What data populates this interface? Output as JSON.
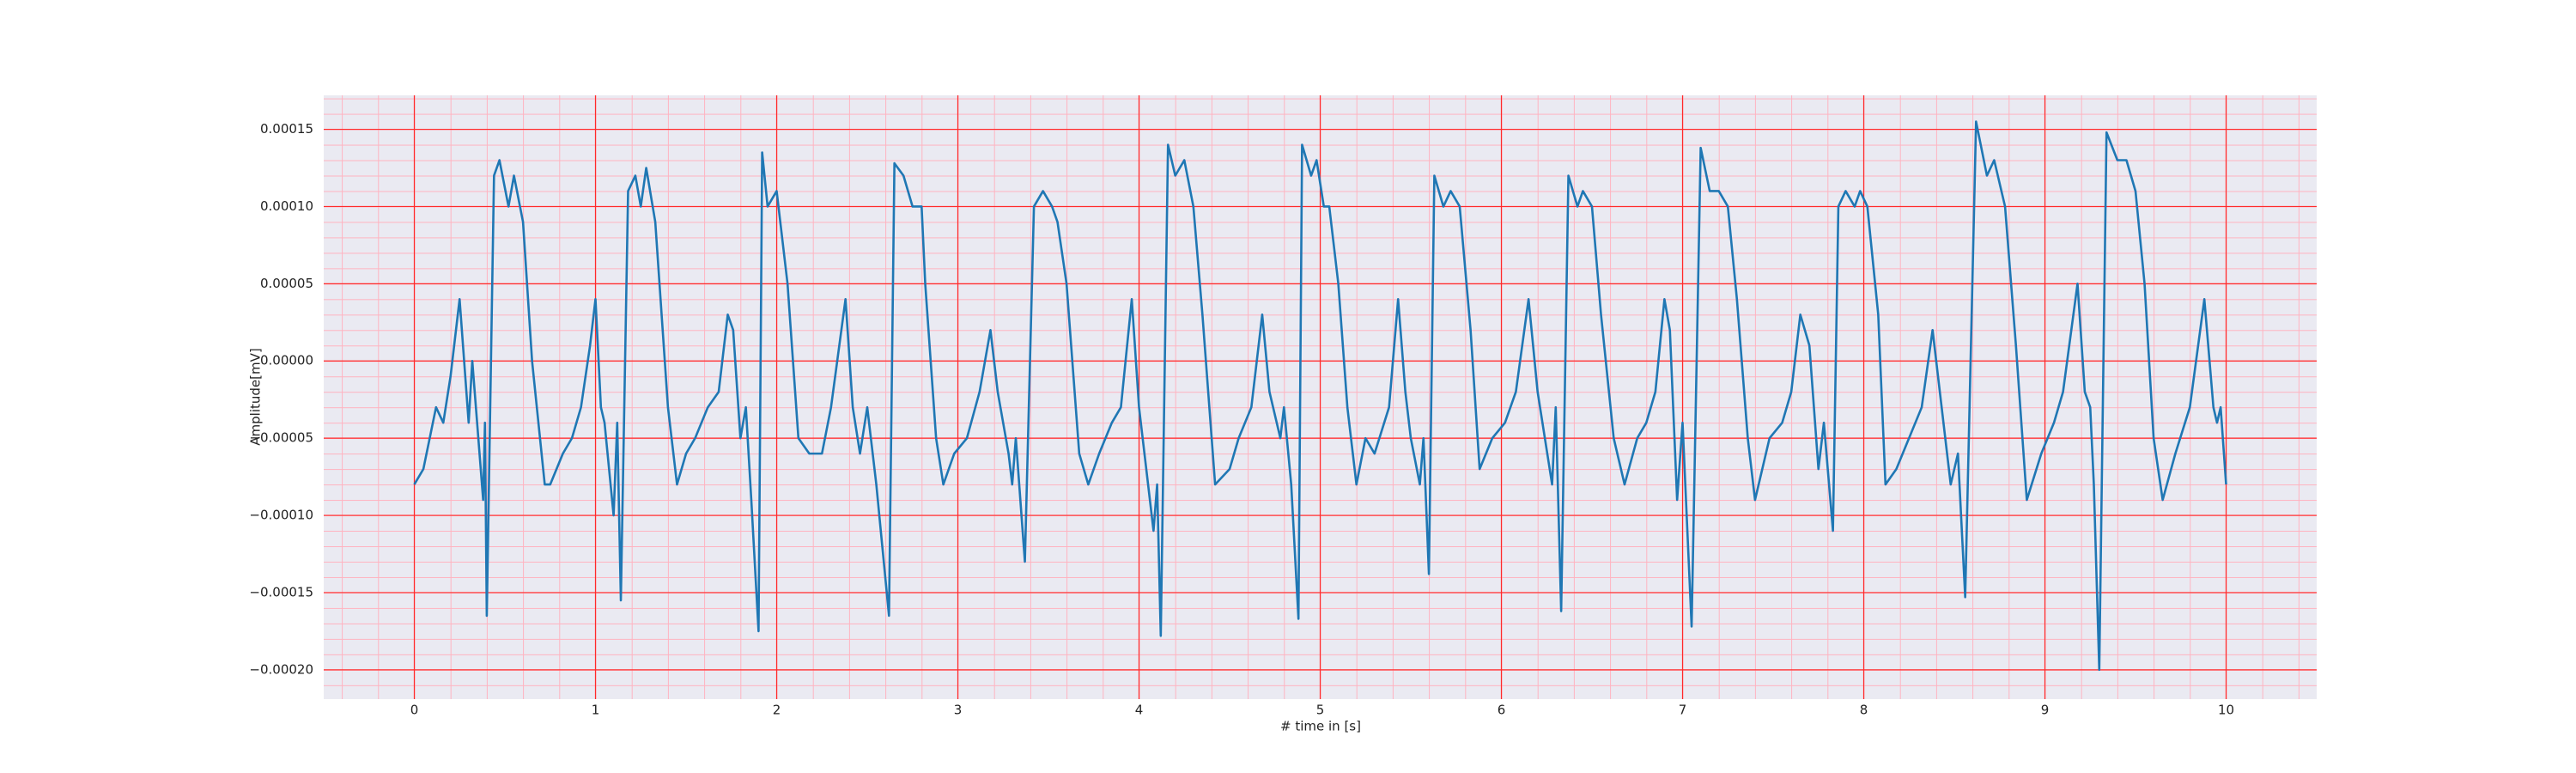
{
  "chart_data": {
    "type": "line",
    "xlabel": "# time in [s]",
    "ylabel": "Amplitude[mV]",
    "xlim": [
      -0.5,
      10.5
    ],
    "ylim": [
      -0.000219,
      0.000172
    ],
    "xticks": [
      0,
      1,
      2,
      3,
      4,
      5,
      6,
      7,
      8,
      9,
      10
    ],
    "yticks": [
      {
        "value": -0.0002,
        "label": "−0.00020"
      },
      {
        "value": -0.00015,
        "label": "−0.00015"
      },
      {
        "value": -0.0001,
        "label": "−0.00010"
      },
      {
        "value": -5e-05,
        "label": "−0.00005"
      },
      {
        "value": 0,
        "label": "0.00000"
      },
      {
        "value": 5e-05,
        "label": "0.00005"
      },
      {
        "value": 0.0001,
        "label": "0.00010"
      },
      {
        "value": 0.00015,
        "label": "0.00015"
      }
    ],
    "grid": true,
    "series": [
      {
        "color": "#1f77b4",
        "x": [
          0,
          0.05,
          0.12,
          0.16,
          0.2,
          0.25,
          0.3,
          0.32,
          0.38,
          0.39,
          0.4,
          0.44,
          0.47,
          0.52,
          0.55,
          0.6,
          0.65,
          0.72,
          0.75,
          0.82,
          0.87,
          0.92,
          0.97,
          1.0,
          1.03,
          1.05,
          1.1,
          1.12,
          1.14,
          1.18,
          1.22,
          1.25,
          1.28,
          1.33,
          1.4,
          1.45,
          1.5,
          1.55,
          1.62,
          1.68,
          1.73,
          1.76,
          1.8,
          1.83,
          1.86,
          1.9,
          1.92,
          1.95,
          2.0,
          2.06,
          2.12,
          2.18,
          2.25,
          2.3,
          2.38,
          2.42,
          2.46,
          2.5,
          2.55,
          2.62,
          2.65,
          2.7,
          2.75,
          2.8,
          2.82,
          2.88,
          2.92,
          2.98,
          3.05,
          3.12,
          3.18,
          3.22,
          3.28,
          3.3,
          3.32,
          3.37,
          3.42,
          3.47,
          3.52,
          3.55,
          3.6,
          3.67,
          3.72,
          3.78,
          3.85,
          3.9,
          3.96,
          4.0,
          4.05,
          4.08,
          4.1,
          4.12,
          4.16,
          4.2,
          4.25,
          4.3,
          4.35,
          4.42,
          4.5,
          4.55,
          4.62,
          4.68,
          4.72,
          4.78,
          4.8,
          4.84,
          4.88,
          4.9,
          4.95,
          4.98,
          5.02,
          5.05,
          5.1,
          5.15,
          5.2,
          5.25,
          5.3,
          5.38,
          5.43,
          5.47,
          5.5,
          5.55,
          5.57,
          5.6,
          5.63,
          5.68,
          5.72,
          5.77,
          5.83,
          5.88,
          5.95,
          6.02,
          6.08,
          6.15,
          6.2,
          6.28,
          6.3,
          6.33,
          6.37,
          6.42,
          6.45,
          6.5,
          6.55,
          6.62,
          6.68,
          6.75,
          6.8,
          6.85,
          6.9,
          6.93,
          6.97,
          7.0,
          7.05,
          7.1,
          7.15,
          7.2,
          7.25,
          7.3,
          7.36,
          7.4,
          7.48,
          7.55,
          7.6,
          7.65,
          7.7,
          7.75,
          7.78,
          7.83,
          7.86,
          7.9,
          7.95,
          7.98,
          8.02,
          8.08,
          8.12,
          8.18,
          8.25,
          8.32,
          8.38,
          8.42,
          8.48,
          8.52,
          8.56,
          8.62,
          8.68,
          8.72,
          8.78,
          8.84,
          8.9,
          8.98,
          9.05,
          9.1,
          9.18,
          9.22,
          9.25,
          9.27,
          9.3,
          9.34,
          9.4,
          9.45,
          9.5,
          9.55,
          9.6,
          9.65,
          9.72,
          9.8,
          9.88,
          9.93,
          9.95,
          9.97,
          10.0
        ],
        "values": [
          -8e-05,
          -7e-05,
          -3e-05,
          -4e-05,
          -1e-05,
          4e-05,
          -4e-05,
          0,
          -9e-05,
          -4e-05,
          -0.000165,
          0.00012,
          0.00013,
          0.0001,
          0.00012,
          9e-05,
          0,
          -8e-05,
          -8e-05,
          -6e-05,
          -5e-05,
          -3e-05,
          1e-05,
          4e-05,
          -3e-05,
          -4e-05,
          -0.0001,
          -4e-05,
          -0.000155,
          0.00011,
          0.00012,
          0.0001,
          0.000125,
          9e-05,
          -3e-05,
          -8e-05,
          -6e-05,
          -5e-05,
          -3e-05,
          -2e-05,
          3e-05,
          2e-05,
          -5e-05,
          -3e-05,
          -9e-05,
          -0.000175,
          0.000135,
          0.0001,
          0.00011,
          5e-05,
          -5e-05,
          -6e-05,
          -6e-05,
          -3e-05,
          4e-05,
          -3e-05,
          -6e-05,
          -3e-05,
          -8e-05,
          -0.000165,
          0.000128,
          0.00012,
          0.0001,
          0.0001,
          5e-05,
          -5e-05,
          -8e-05,
          -6e-05,
          -5e-05,
          -2e-05,
          2e-05,
          -2e-05,
          -6e-05,
          -8e-05,
          -5e-05,
          -0.00013,
          0.0001,
          0.00011,
          0.0001,
          9e-05,
          5e-05,
          -6e-05,
          -8e-05,
          -6e-05,
          -4e-05,
          -3e-05,
          4e-05,
          -3e-05,
          -8e-05,
          -0.00011,
          -8e-05,
          -0.000178,
          0.00014,
          0.00012,
          0.00013,
          0.0001,
          3e-05,
          -8e-05,
          -7e-05,
          -5e-05,
          -3e-05,
          3e-05,
          -2e-05,
          -5e-05,
          -3e-05,
          -8e-05,
          -0.000167,
          0.00014,
          0.00012,
          0.00013,
          0.0001,
          0.0001,
          5e-05,
          -3e-05,
          -8e-05,
          -5e-05,
          -6e-05,
          -3e-05,
          4e-05,
          -2e-05,
          -5e-05,
          -8e-05,
          -5e-05,
          -0.000138,
          0.00012,
          0.0001,
          0.00011,
          0.0001,
          2e-05,
          -7e-05,
          -5e-05,
          -4e-05,
          -2e-05,
          4e-05,
          -2e-05,
          -8e-05,
          -3e-05,
          -0.000162,
          0.00012,
          0.0001,
          0.00011,
          0.0001,
          3e-05,
          -5e-05,
          -8e-05,
          -5e-05,
          -4e-05,
          -2e-05,
          4e-05,
          2e-05,
          -9e-05,
          -4e-05,
          -0.000172,
          0.000138,
          0.00011,
          0.00011,
          0.0001,
          4e-05,
          -5e-05,
          -9e-05,
          -5e-05,
          -4e-05,
          -2e-05,
          3e-05,
          1e-05,
          -7e-05,
          -4e-05,
          -0.00011,
          0.0001,
          0.00011,
          0.0001,
          0.00011,
          0.0001,
          3e-05,
          -8e-05,
          -7e-05,
          -5e-05,
          -3e-05,
          2e-05,
          -2e-05,
          -8e-05,
          -6e-05,
          -0.000153,
          0.000155,
          0.00012,
          0.00013,
          0.0001,
          1e-05,
          -9e-05,
          -6e-05,
          -4e-05,
          -2e-05,
          5e-05,
          -2e-05,
          -3e-05,
          -8e-05,
          -0.0002,
          0.000148,
          0.00013,
          0.00013,
          0.00011,
          5e-05,
          -5e-05,
          -9e-05,
          -6e-05,
          -3e-05,
          4e-05,
          -3e-05,
          -4e-05,
          -3e-05,
          -8e-05
        ]
      }
    ]
  }
}
